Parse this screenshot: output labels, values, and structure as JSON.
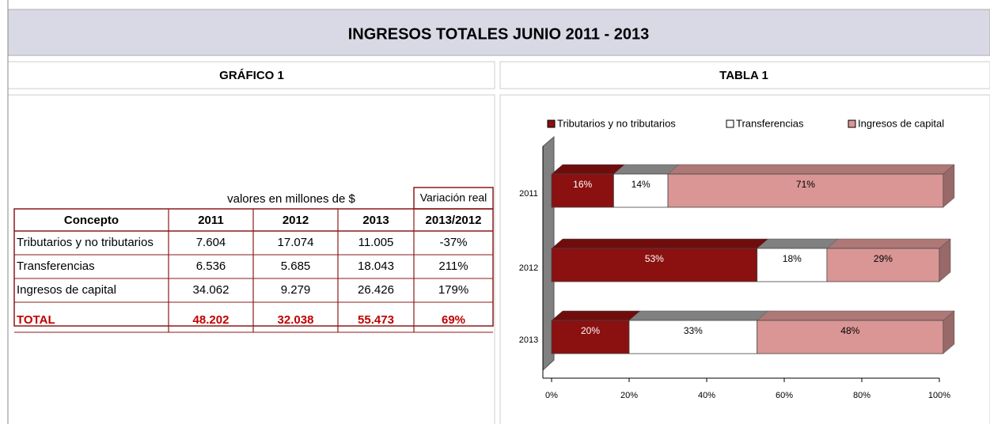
{
  "header": {
    "title": "INGRESOS TOTALES JUNIO  2011 - 2013"
  },
  "left": {
    "title": "GRÁFICO 1"
  },
  "right": {
    "title": "TABLA 1"
  },
  "table": {
    "note": "valores en millones de $",
    "variation_header": "Variación real",
    "columns": [
      "Concepto",
      "2011",
      "2012",
      "2013",
      "2013/2012"
    ],
    "rows": [
      [
        "Tributarios y no tributarios",
        "7.604",
        "17.074",
        "11.005",
        "-37%"
      ],
      [
        "Transferencias",
        "6.536",
        "5.685",
        "18.043",
        "211%"
      ],
      [
        "Ingresos de capital",
        "34.062",
        "9.279",
        "26.426",
        "179%"
      ],
      [
        "TOTAL",
        "48.202",
        "32.038",
        "55.473",
        "69%"
      ]
    ]
  },
  "chart_data": {
    "type": "stacked_bar_horizontal",
    "categories": [
      "2011",
      "2012",
      "2013"
    ],
    "series": [
      {
        "name": "Tributarios y no tributarios",
        "color": "#8b1010",
        "values": [
          16,
          53,
          20
        ],
        "value_labels": [
          "16%",
          "53%",
          "20%"
        ]
      },
      {
        "name": "Transferencias",
        "color": "#ffffff",
        "values": [
          14,
          18,
          33
        ],
        "value_labels": [
          "14%",
          "18%",
          "33%"
        ]
      },
      {
        "name": "Ingresos de capital",
        "color": "#d99694",
        "values": [
          71,
          29,
          48
        ],
        "value_labels": [
          "71%",
          "29%",
          "48%"
        ]
      }
    ],
    "xlim": [
      0,
      100
    ],
    "xticks": [
      {
        "value": 0,
        "label": "0%"
      },
      {
        "value": 20,
        "label": "20%"
      },
      {
        "value": 40,
        "label": "40%"
      },
      {
        "value": 60,
        "label": "60%"
      },
      {
        "value": 80,
        "label": "80%"
      },
      {
        "value": 100,
        "label": "100%"
      }
    ],
    "legend": "top"
  }
}
